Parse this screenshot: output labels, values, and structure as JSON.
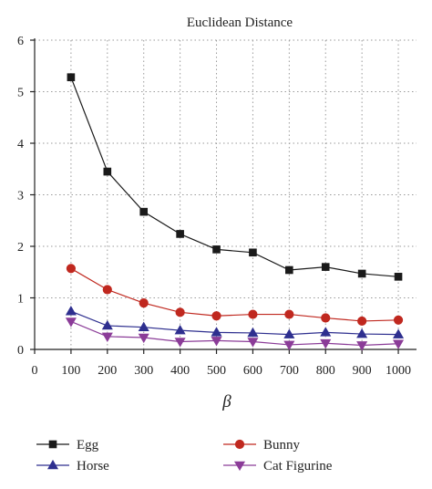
{
  "chart_data": {
    "type": "line",
    "title": "Euclidean Distance",
    "xlabel": "β",
    "ylabel": "",
    "xlim": [
      0,
      1050
    ],
    "ylim": [
      0,
      6
    ],
    "xticks": [
      0,
      100,
      200,
      300,
      400,
      500,
      600,
      700,
      800,
      900,
      1000
    ],
    "yticks": [
      0,
      1,
      2,
      3,
      4,
      5,
      6
    ],
    "grid": true,
    "legend_position": "bottom",
    "x": [
      100,
      200,
      300,
      400,
      500,
      600,
      700,
      800,
      900,
      1000
    ],
    "series": [
      {
        "name": "Egg",
        "marker": "square",
        "color": "#1a1a1a",
        "values": [
          5.28,
          3.45,
          2.67,
          2.24,
          1.94,
          1.88,
          1.54,
          1.6,
          1.47,
          1.41
        ]
      },
      {
        "name": "Bunny",
        "marker": "circle",
        "color": "#c0281f",
        "values": [
          1.57,
          1.16,
          0.9,
          0.72,
          0.65,
          0.68,
          0.68,
          0.61,
          0.55,
          0.57
        ]
      },
      {
        "name": "Horse",
        "marker": "triangle-up",
        "color": "#2e2f8f",
        "values": [
          0.74,
          0.46,
          0.43,
          0.37,
          0.33,
          0.32,
          0.29,
          0.33,
          0.3,
          0.29
        ]
      },
      {
        "name": "Cat Figurine",
        "marker": "triangle-down",
        "color": "#8b3c98",
        "values": [
          0.54,
          0.25,
          0.23,
          0.15,
          0.17,
          0.15,
          0.09,
          0.12,
          0.08,
          0.11
        ]
      }
    ]
  }
}
